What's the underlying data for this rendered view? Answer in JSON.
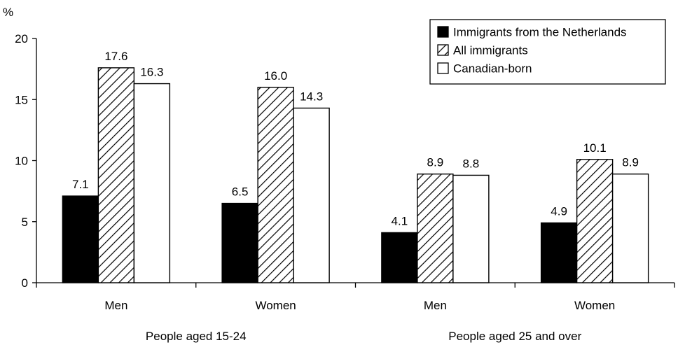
{
  "chart_data": {
    "type": "bar",
    "ylabel": "%",
    "ylim": [
      0,
      20
    ],
    "yticks": [
      0,
      5,
      10,
      15,
      20
    ],
    "groups": [
      {
        "label": "People aged 15-24",
        "categories": [
          "Men",
          "Women"
        ]
      },
      {
        "label": "People aged 25 and over",
        "categories": [
          "Men",
          "Women"
        ]
      }
    ],
    "categories": [
      "Men",
      "Women",
      "Men",
      "Women"
    ],
    "series": [
      {
        "name": "Immigrants from the Netherlands",
        "fill": "solid",
        "color": "#000000",
        "values": [
          7.1,
          6.5,
          4.1,
          4.9
        ],
        "labels": [
          "7.1",
          "6.5",
          "4.1",
          "4.9"
        ]
      },
      {
        "name": "All immigrants",
        "fill": "hatched",
        "color": "#000000",
        "values": [
          17.6,
          16.0,
          8.9,
          10.1
        ],
        "labels": [
          "17.6",
          "16.0",
          "8.9",
          "10.1"
        ]
      },
      {
        "name": "Canadian-born",
        "fill": "white",
        "color": "#ffffff",
        "values": [
          16.3,
          14.3,
          8.8,
          8.9
        ],
        "labels": [
          "16.3",
          "14.3",
          "8.8",
          "8.9"
        ]
      }
    ],
    "legend_position": "top-right",
    "grid": false
  }
}
